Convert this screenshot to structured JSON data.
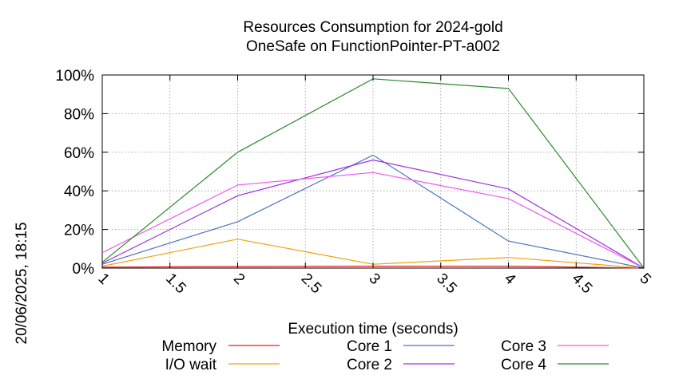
{
  "chart_data": {
    "type": "line",
    "title": "Resources Consumption for 2024-gold",
    "subtitle": "OneSafe on FunctionPointer-PT-a002",
    "xlabel": "Execution time (seconds)",
    "ylabel": "",
    "timestamp": "20/06/2025, 18:15",
    "xlim": [
      1,
      5
    ],
    "ylim": [
      0,
      100
    ],
    "x_ticks": [
      "1",
      "1.5",
      "2",
      "2.5",
      "3",
      "3.5",
      "4",
      "4.5",
      "5"
    ],
    "y_ticks": [
      "0%",
      "20%",
      "40%",
      "60%",
      "80%",
      "100%"
    ],
    "grid": true,
    "legend_position": "bottom",
    "x": [
      1,
      2,
      3,
      4,
      5
    ],
    "series": [
      {
        "name": "Memory",
        "color": "#e41a1c",
        "values": [
          0.5,
          0.8,
          1.0,
          1.0,
          0
        ]
      },
      {
        "name": "I/O wait",
        "color": "#f0a30a",
        "values": [
          1,
          15,
          2,
          5.5,
          0
        ]
      },
      {
        "name": "Core 1",
        "color": "#4a72c4",
        "values": [
          2,
          24,
          58.5,
          14,
          0
        ]
      },
      {
        "name": "Core 2",
        "color": "#9b30d9",
        "values": [
          2.5,
          37.5,
          56,
          41,
          0
        ]
      },
      {
        "name": "Core 3",
        "color": "#ee55ee",
        "values": [
          8,
          43,
          49.5,
          36,
          0
        ]
      },
      {
        "name": "Core 4",
        "color": "#2b8a2b",
        "values": [
          3,
          60,
          98,
          93,
          0
        ]
      }
    ]
  }
}
